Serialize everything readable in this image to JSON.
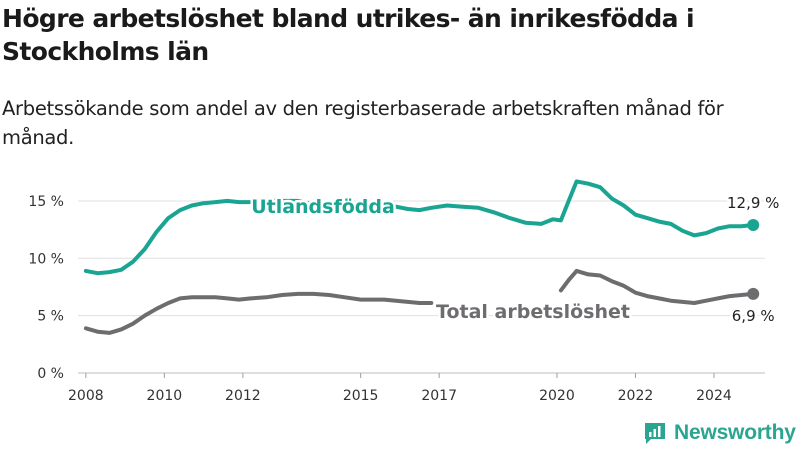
{
  "title": "Högre arbetslöshet bland utrikes- än inrikesfödda i Stockholms län",
  "subtitle": "Arbetssökande som andel av den registerbaserade arbetskraften månad för månad.",
  "brand": "Newsworthy",
  "colors": {
    "utlandsfodda": "#1aa492",
    "total": "#6e6c6f",
    "grid": "#e0e0e0"
  },
  "chart_data": {
    "type": "line",
    "x_ticks": [
      "2008",
      "2010",
      "2012",
      "2015",
      "2017",
      "2020",
      "2022",
      "2024"
    ],
    "y_ticks": [
      "0 %",
      "5 %",
      "10 %",
      "15 %"
    ],
    "ylim": [
      0,
      17
    ],
    "xlim": [
      2007.8,
      2025.3
    ],
    "grid": true,
    "series": [
      {
        "name": "Utlandsfödda",
        "end_label": "12,9 %",
        "points": [
          [
            2008.0,
            8.9
          ],
          [
            2008.3,
            8.7
          ],
          [
            2008.6,
            8.8
          ],
          [
            2008.9,
            9.0
          ],
          [
            2009.2,
            9.7
          ],
          [
            2009.5,
            10.8
          ],
          [
            2009.8,
            12.3
          ],
          [
            2010.1,
            13.5
          ],
          [
            2010.4,
            14.2
          ],
          [
            2010.7,
            14.6
          ],
          [
            2011.0,
            14.8
          ],
          [
            2011.3,
            14.9
          ],
          [
            2011.6,
            15.0
          ],
          [
            2011.9,
            14.9
          ],
          [
            2012.2,
            14.9
          ],
          [
            2012.6,
            15.0
          ],
          [
            2013.0,
            15.0
          ],
          [
            2013.4,
            15.0
          ],
          [
            2013.8,
            14.7
          ],
          [
            2014.2,
            14.5
          ],
          [
            2014.6,
            14.5
          ],
          [
            2015.0,
            14.5
          ],
          [
            2015.3,
            14.7
          ],
          [
            2015.6,
            14.8
          ],
          [
            2015.9,
            14.5
          ],
          [
            2016.2,
            14.3
          ],
          [
            2016.5,
            14.2
          ],
          [
            2016.8,
            14.4
          ],
          [
            2017.2,
            14.6
          ],
          [
            2017.6,
            14.5
          ],
          [
            2018.0,
            14.4
          ],
          [
            2018.4,
            14.0
          ],
          [
            2018.8,
            13.5
          ],
          [
            2019.2,
            13.1
          ],
          [
            2019.6,
            13.0
          ],
          [
            2019.9,
            13.4
          ],
          [
            2020.1,
            13.3
          ],
          [
            2020.3,
            15.0
          ],
          [
            2020.5,
            16.7
          ],
          [
            2020.8,
            16.5
          ],
          [
            2021.1,
            16.2
          ],
          [
            2021.4,
            15.2
          ],
          [
            2021.7,
            14.6
          ],
          [
            2022.0,
            13.8
          ],
          [
            2022.3,
            13.5
          ],
          [
            2022.6,
            13.2
          ],
          [
            2022.9,
            13.0
          ],
          [
            2023.2,
            12.4
          ],
          [
            2023.5,
            12.0
          ],
          [
            2023.8,
            12.2
          ],
          [
            2024.1,
            12.6
          ],
          [
            2024.4,
            12.8
          ],
          [
            2024.7,
            12.8
          ],
          [
            2025.0,
            12.9
          ]
        ]
      },
      {
        "name": "Total arbetslöshet",
        "end_label": "6,9 %",
        "segments": [
          [
            [
              2008.0,
              3.9
            ],
            [
              2008.3,
              3.6
            ],
            [
              2008.6,
              3.5
            ],
            [
              2008.9,
              3.8
            ],
            [
              2009.2,
              4.3
            ],
            [
              2009.5,
              5.0
            ],
            [
              2009.8,
              5.6
            ],
            [
              2010.1,
              6.1
            ],
            [
              2010.4,
              6.5
            ],
            [
              2010.7,
              6.6
            ],
            [
              2011.0,
              6.6
            ],
            [
              2011.3,
              6.6
            ],
            [
              2011.6,
              6.5
            ],
            [
              2011.9,
              6.4
            ],
            [
              2012.2,
              6.5
            ],
            [
              2012.6,
              6.6
            ],
            [
              2013.0,
              6.8
            ],
            [
              2013.4,
              6.9
            ],
            [
              2013.8,
              6.9
            ],
            [
              2014.2,
              6.8
            ],
            [
              2014.6,
              6.6
            ],
            [
              2015.0,
              6.4
            ],
            [
              2015.3,
              6.4
            ],
            [
              2015.6,
              6.4
            ],
            [
              2015.9,
              6.3
            ],
            [
              2016.2,
              6.2
            ],
            [
              2016.5,
              6.1
            ],
            [
              2016.8,
              6.1
            ]
          ],
          [
            [
              2020.1,
              7.2
            ],
            [
              2020.3,
              8.1
            ],
            [
              2020.5,
              8.9
            ],
            [
              2020.8,
              8.6
            ],
            [
              2021.1,
              8.5
            ],
            [
              2021.4,
              8.0
            ],
            [
              2021.7,
              7.6
            ],
            [
              2022.0,
              7.0
            ],
            [
              2022.3,
              6.7
            ],
            [
              2022.6,
              6.5
            ],
            [
              2022.9,
              6.3
            ],
            [
              2023.2,
              6.2
            ],
            [
              2023.5,
              6.1
            ],
            [
              2023.8,
              6.3
            ],
            [
              2024.1,
              6.5
            ],
            [
              2024.4,
              6.7
            ],
            [
              2024.7,
              6.8
            ],
            [
              2025.0,
              6.9
            ]
          ]
        ]
      }
    ]
  }
}
